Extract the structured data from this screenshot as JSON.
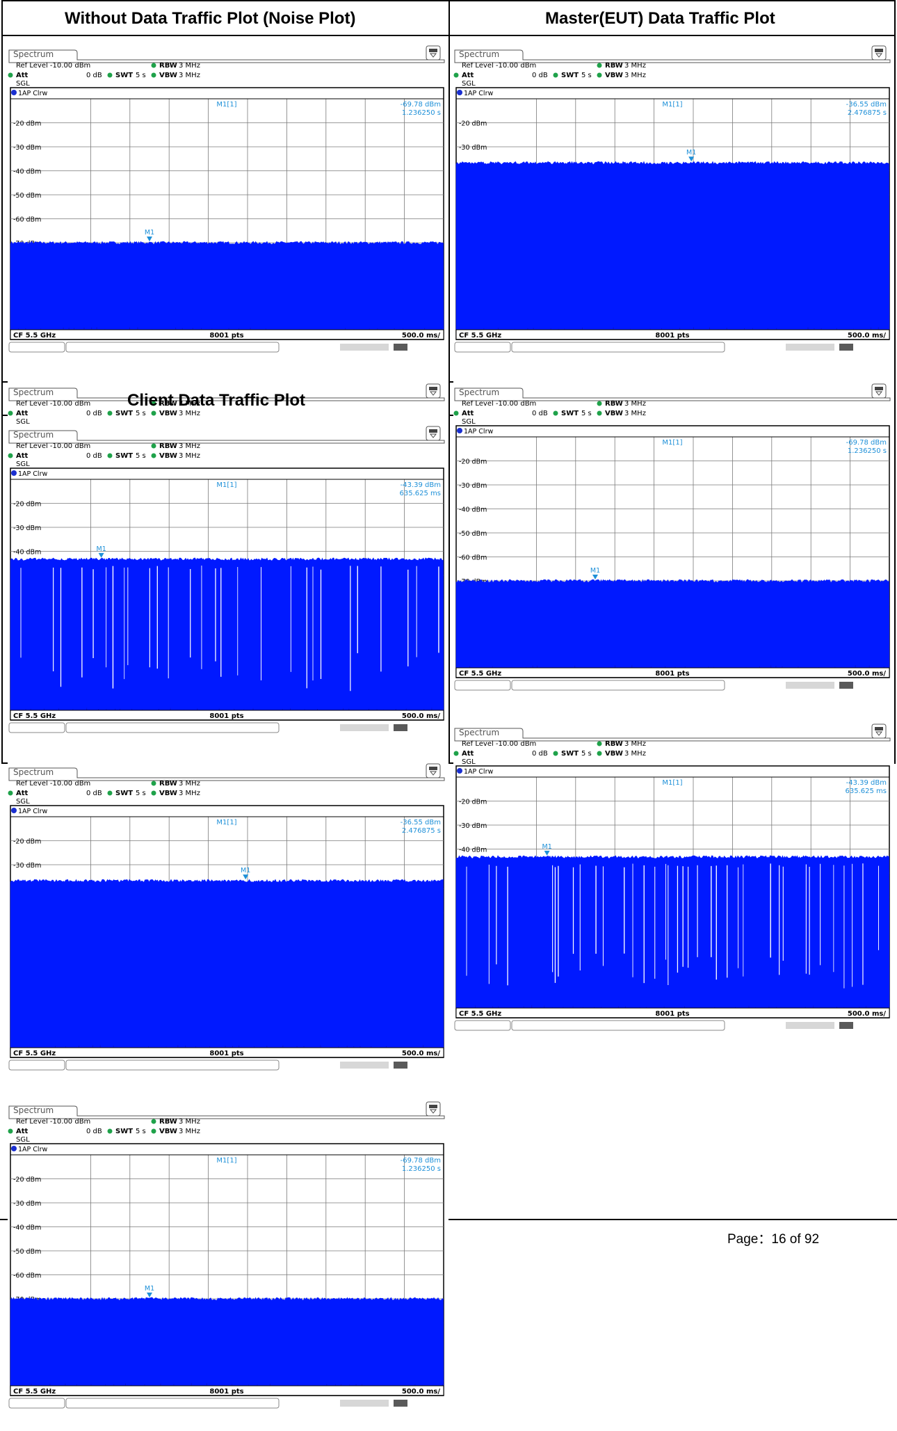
{
  "headers": {
    "noise": "Without Data Traffic Plot (Noise Plot)",
    "master": "Master(EUT) Data Traffic Plot",
    "client": "Client Data Traffic Plot"
  },
  "footer": {
    "page_label": "Page：16 of 92"
  },
  "colors": {
    "trace": "#0019ff",
    "marker": "#1e90d8",
    "grid": "#7a7a7a"
  },
  "chart_data": [
    {
      "type": "area",
      "tab": "Spectrum",
      "ref_level": "Ref Level -10.00 dBm",
      "att": "Att",
      "att_value": "0 dB",
      "swt": "SWT",
      "swt_value": "5 s",
      "rbw": "RBW",
      "rbw_value": "3 MHz",
      "vbw": "VBW",
      "vbw_value": "3 MHz",
      "mode": "SGL",
      "trace_label": "1AP Clrw",
      "marker_name": "M1[1]",
      "marker_value": "-69.78 dBm",
      "marker_time": "1.236250 s",
      "marker_label": "M1",
      "marker_x_fraction": 0.25,
      "y_ticks": [
        "-20 dBm",
        "-30 dBm",
        "-40 dBm",
        "-50 dBm",
        "-60 dBm",
        "-70 dBm"
      ],
      "ylim": [
        -110,
        -10
      ],
      "noise_floor_dbm": -70.3,
      "bursty": false,
      "cf": "CF 5.5 GHz",
      "pts": "8001 pts",
      "span": "500.0 ms/"
    },
    {
      "type": "area",
      "tab": "Spectrum",
      "ref_level": "Ref Level -10.00 dBm",
      "att": "Att",
      "att_value": "0 dB",
      "swt": "SWT",
      "swt_value": "5 s",
      "rbw": "RBW",
      "rbw_value": "3 MHz",
      "vbw": "VBW",
      "vbw_value": "3 MHz",
      "mode": "SGL",
      "trace_label": "1AP Clrw",
      "marker_name": "M1[1]",
      "marker_value": "-36.55 dBm",
      "marker_time": "2.476875 s",
      "marker_label": "M1",
      "marker_x_fraction": 0.495,
      "y_ticks": [
        "-20 dBm",
        "-30 dBm"
      ],
      "ylim": [
        -110,
        -10
      ],
      "noise_floor_dbm": -37.0,
      "bursty": false,
      "cf": "CF 5.5 GHz",
      "pts": "8001 pts",
      "span": "500.0 ms/"
    },
    {
      "type": "area",
      "tab": "Spectrum",
      "ref_level": "Ref Level -10.00 dBm",
      "att": "Att",
      "att_value": "0 dB",
      "swt": "SWT",
      "swt_value": "5 s",
      "rbw": "RBW",
      "rbw_value": "3 MHz",
      "vbw": "VBW",
      "vbw_value": "3 MHz",
      "mode": "SGL",
      "trace_label": "1AP Clrw",
      "marker_name": "M1[1]",
      "marker_value": "-43.39 dBm",
      "marker_time": "635.625 ms",
      "marker_label": "M1",
      "marker_x_fraction": 0.127,
      "y_ticks": [
        "-20 dBm",
        "-30 dBm",
        "-40 dBm"
      ],
      "ylim": [
        -110,
        -10
      ],
      "noise_floor_dbm": -43.6,
      "bursty": true,
      "cf": "CF 5.5 GHz",
      "pts": "8001 pts",
      "span": "500.0 ms/"
    }
  ]
}
